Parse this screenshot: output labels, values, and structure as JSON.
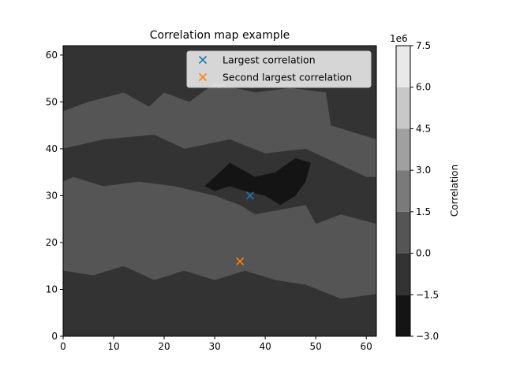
{
  "chart_data": {
    "type": "heatmap",
    "title": "Correlation map example",
    "xlabel": "",
    "ylabel": "",
    "xlim": [
      0,
      62
    ],
    "ylim": [
      0,
      62
    ],
    "x_ticks": [
      0,
      10,
      20,
      30,
      40,
      50,
      60
    ],
    "y_ticks": [
      0,
      10,
      20,
      30,
      40,
      50,
      60
    ],
    "grid": false,
    "colorbar": {
      "label": "Correlation",
      "multiplier": "1e6",
      "levels": [
        -3.0,
        -1.5,
        0.0,
        1.5,
        3.0,
        4.5,
        6.0,
        7.5
      ],
      "tick_labels": [
        "−3.0",
        "−1.5",
        "0.0",
        "1.5",
        "3.0",
        "4.5",
        "6.0",
        "7.5"
      ],
      "colors": [
        "#141414",
        "#333333",
        "#555555",
        "#7a7a7a",
        "#a0a0a0",
        "#c8c8c8",
        "#e9e9e9"
      ]
    },
    "field_regions": [
      {
        "level_band": "-1.5 to 0.0",
        "color": "#333333",
        "points": [
          [
            0,
            62
          ],
          [
            62,
            62
          ],
          [
            62,
            42
          ],
          [
            53,
            45
          ],
          [
            52,
            52
          ],
          [
            45,
            53
          ],
          [
            38,
            52
          ],
          [
            30,
            54
          ],
          [
            25,
            50
          ],
          [
            20,
            52
          ],
          [
            17,
            49
          ],
          [
            12,
            52
          ],
          [
            5,
            50
          ],
          [
            0,
            48
          ]
        ]
      },
      {
        "level_band": "-1.5 to 0.0",
        "color": "#333333",
        "points": [
          [
            0,
            40
          ],
          [
            8,
            42
          ],
          [
            18,
            43
          ],
          [
            24,
            40
          ],
          [
            33,
            42
          ],
          [
            40,
            39
          ],
          [
            48,
            40
          ],
          [
            54,
            37
          ],
          [
            60,
            34
          ],
          [
            62,
            34
          ],
          [
            62,
            24
          ],
          [
            55,
            26
          ],
          [
            50,
            24
          ],
          [
            48,
            28
          ],
          [
            43,
            27
          ],
          [
            38,
            26
          ],
          [
            35,
            28
          ],
          [
            30,
            30
          ],
          [
            22,
            32
          ],
          [
            15,
            33
          ],
          [
            8,
            32
          ],
          [
            2,
            34
          ],
          [
            0,
            33
          ]
        ]
      },
      {
        "level_band": "-1.5 to 0.0",
        "color": "#333333",
        "points": [
          [
            0,
            14
          ],
          [
            6,
            13
          ],
          [
            12,
            15
          ],
          [
            18,
            12
          ],
          [
            24,
            14
          ],
          [
            30,
            12
          ],
          [
            36,
            14
          ],
          [
            42,
            12
          ],
          [
            48,
            11
          ],
          [
            55,
            8
          ],
          [
            62,
            9
          ],
          [
            62,
            0
          ],
          [
            0,
            0
          ]
        ]
      },
      {
        "level_band": "-3.0 to -1.5",
        "color": "#141414",
        "points": [
          [
            28,
            32
          ],
          [
            33,
            37
          ],
          [
            38,
            34
          ],
          [
            42,
            35
          ],
          [
            46,
            38
          ],
          [
            49,
            37
          ],
          [
            48,
            33
          ],
          [
            46,
            30
          ],
          [
            43,
            28
          ],
          [
            40,
            30
          ],
          [
            36,
            31
          ],
          [
            33,
            32
          ],
          [
            30,
            31
          ]
        ]
      }
    ],
    "series": [
      {
        "name": "Largest correlation",
        "marker": "x",
        "color": "#1f77b4",
        "x": [
          37
        ],
        "y": [
          30
        ]
      },
      {
        "name": "Second largest correlation",
        "marker": "x",
        "color": "#ff7f0e",
        "x": [
          35
        ],
        "y": [
          16
        ]
      }
    ],
    "legend_placement": "top-right",
    "background_color": "#555555"
  }
}
